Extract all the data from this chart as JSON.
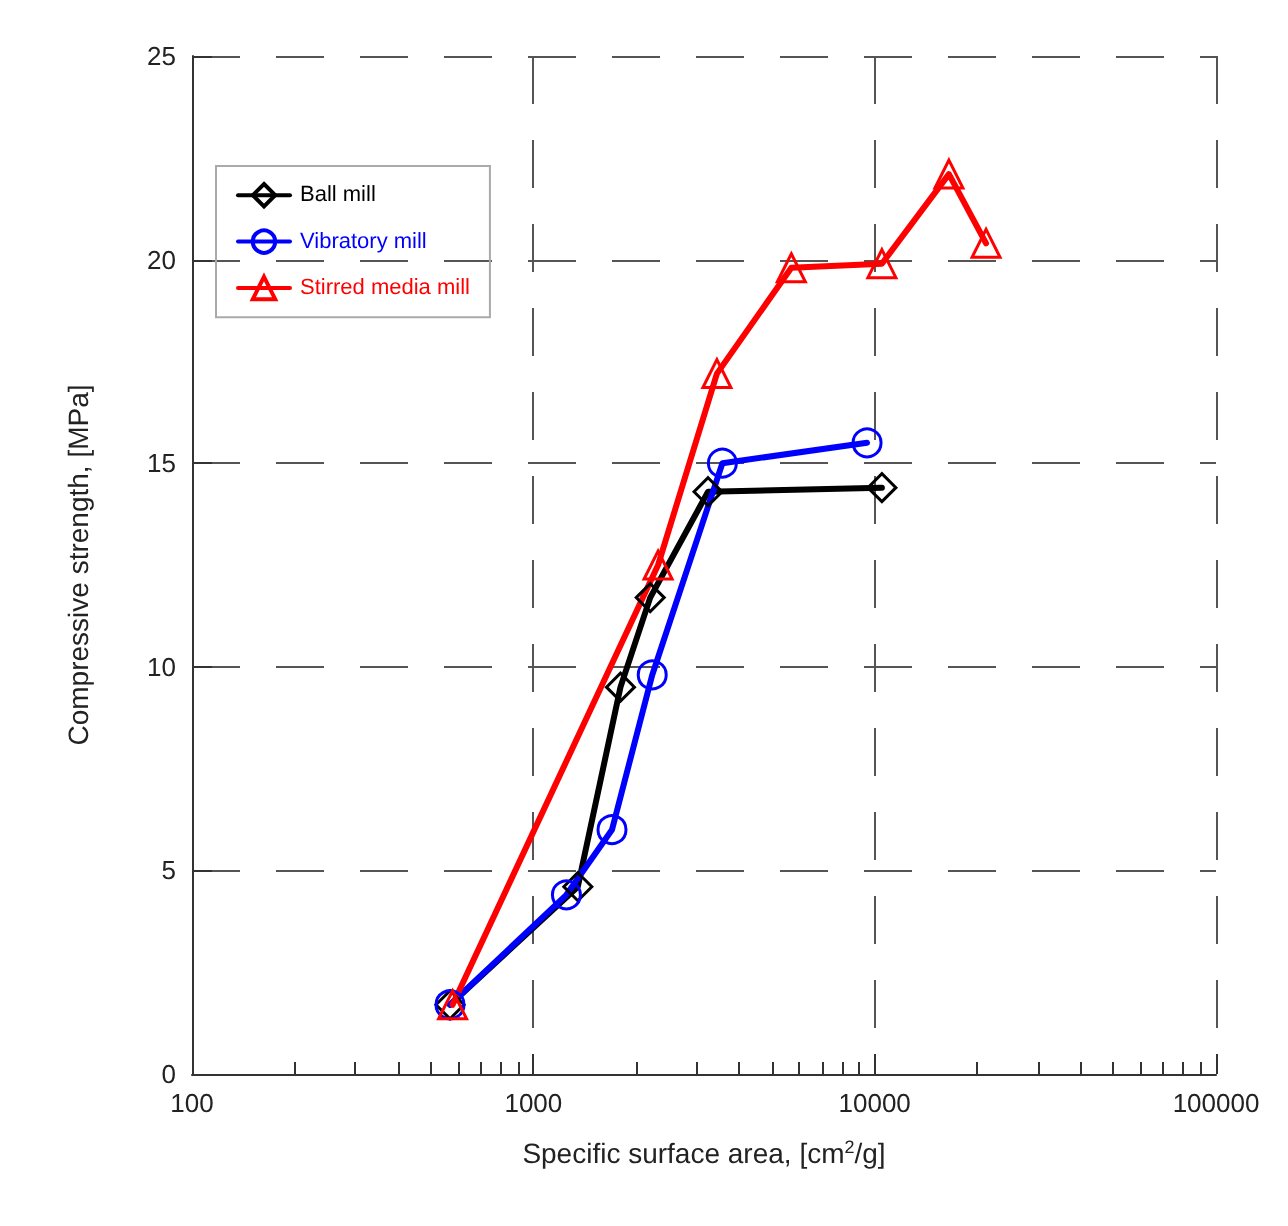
{
  "chart_data": {
    "type": "line",
    "xlabel": "Specific surface area, [cm$^{2}$/g]",
    "ylabel": "Compressive strength, [MPa]",
    "log": "x",
    "xlim": [
      100,
      100000
    ],
    "xticks": [
      100,
      1000,
      10000,
      100000
    ],
    "ylim": [
      0,
      25
    ],
    "yticks": [
      0,
      5,
      10,
      15,
      20,
      25
    ],
    "grid": true,
    "legend": "top left",
    "line_style": "solid",
    "series": [
      {
        "name": "Ball mill",
        "color": "#000000",
        "marker": "diamond",
        "x": [
          570,
          1350,
          1800,
          2200,
          3250,
          10500
        ],
        "values": [
          1.7,
          4.6,
          9.5,
          11.7,
          14.3,
          14.4
        ]
      },
      {
        "name": "Vibratory mill",
        "color": "#0000ff",
        "marker": "circle",
        "x": [
          570,
          1250,
          1700,
          2230,
          3580,
          9500
        ],
        "values": [
          1.7,
          4.4,
          6.0,
          9.8,
          15.0,
          15.5
        ]
      },
      {
        "name": "Stirred media mill",
        "color": "#ff0000",
        "marker": "triangle",
        "x": [
          580,
          2320,
          3450,
          5700,
          10500,
          16500,
          21200
        ],
        "values": [
          1.7,
          12.5,
          17.2,
          19.8,
          19.9,
          22.1,
          20.4
        ]
      }
    ]
  }
}
